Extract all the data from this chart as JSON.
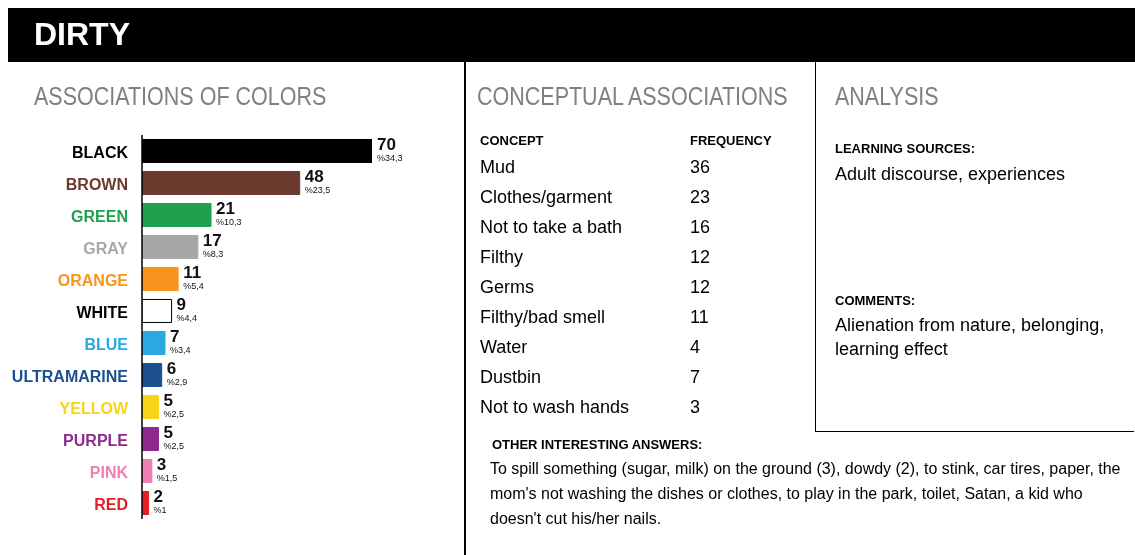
{
  "chart_data": [
    {
      "type": "bar",
      "orientation": "horizontal",
      "title": "DIRTY",
      "subtitle": "ASSOCIATIONS OF COLORS",
      "categories": [
        "BLACK",
        "BROWN",
        "GREEN",
        "GRAY",
        "ORANGE",
        "WHITE",
        "BLUE",
        "ULTRAMARINE",
        "YELLOW",
        "PURPLE",
        "PINK",
        "RED"
      ],
      "values": [
        70,
        48,
        21,
        17,
        11,
        9,
        7,
        6,
        5,
        5,
        3,
        2
      ],
      "colors": [
        "#000000",
        "#6b3a2e",
        "#1fa04f",
        "#a7a7a9",
        "#f7941d",
        "#ffffff",
        "#29a9e0",
        "#1b4f8f",
        "#f7d417",
        "#8e2a8e",
        "#ef7fb3",
        "#e31e24"
      ],
      "data_labels": true,
      "annotations": [
        {
          "text": "%34,3",
          "x": 70,
          "y": "BLACK"
        },
        {
          "text": "%23,5",
          "x": 48,
          "y": "BROWN"
        },
        {
          "text": "%10,3",
          "x": 21,
          "y": "GREEN"
        },
        {
          "text": "%8,3",
          "x": 17,
          "y": "GRAY"
        },
        {
          "text": "%5,4",
          "x": 11,
          "y": "ORANGE"
        },
        {
          "text": "%4,4",
          "x": 9,
          "y": "WHITE"
        },
        {
          "text": "%3,4",
          "x": 7,
          "y": "BLUE"
        },
        {
          "text": "%2,9",
          "x": 6,
          "y": "ULTRAMARINE"
        },
        {
          "text": "%2,5",
          "x": 5,
          "y": "YELLOW"
        },
        {
          "text": "%2,5",
          "x": 5,
          "y": "PURPLE"
        },
        {
          "text": "%1,5",
          "x": 3,
          "y": "PINK"
        },
        {
          "text": "%1",
          "x": 2,
          "y": "RED"
        }
      ]
    },
    {
      "type": "other",
      "title": "CONCEPTUAL ASSOCIATIONS",
      "xlabel": "CONCEPT",
      "ylabel": "FREQUENCY",
      "categories": [
        "Mud",
        "Clothes/garment",
        "Not to take a bath",
        "Filthy",
        "Germs",
        "Filthy/bad smell",
        "Water",
        "Dustbin",
        "Not to wash hands"
      ],
      "values": [
        36,
        23,
        16,
        12,
        12,
        11,
        4,
        7,
        3
      ],
      "data_labels": true,
      "annotations": [
        "OTHER INTERESTING ANSWERS:",
        "To spill something (sugar, milk) on the ground (3), dowdy (2), to stink, car tires, paper, the mom's not washing the dishes or clothes, to play in the park, toilet, Satan, a kid who doesn't cut his/her nails."
      ]
    },
    {
      "type": "other",
      "title": "ANALYSIS",
      "annotations": [
        "LEARNING SOURCES:",
        "Adult discourse, experiences",
        "COMMENTS:",
        "Alienation from nature, belonging, learning effect"
      ]
    }
  ]
}
